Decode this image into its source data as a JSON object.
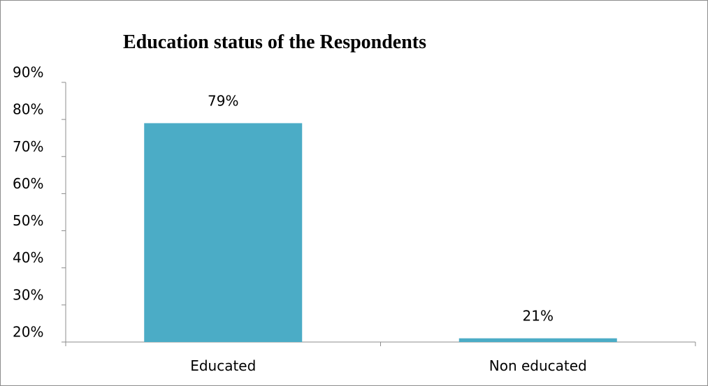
{
  "chart_data": {
    "type": "bar",
    "title": "Education status of the Respondents",
    "categories": [
      "Educated",
      "Non educated"
    ],
    "values": [
      0.79,
      0.21
    ],
    "data_labels": [
      "79%",
      "21%"
    ],
    "ylim": [
      0.2,
      0.9
    ],
    "y_ticks": [
      "20%",
      "30%",
      "40%",
      "50%",
      "60%",
      "70%",
      "80%",
      "90%"
    ],
    "xlabel": "",
    "ylabel": "",
    "grid": false,
    "legend": "none",
    "bar_color": "#4BACC6"
  }
}
